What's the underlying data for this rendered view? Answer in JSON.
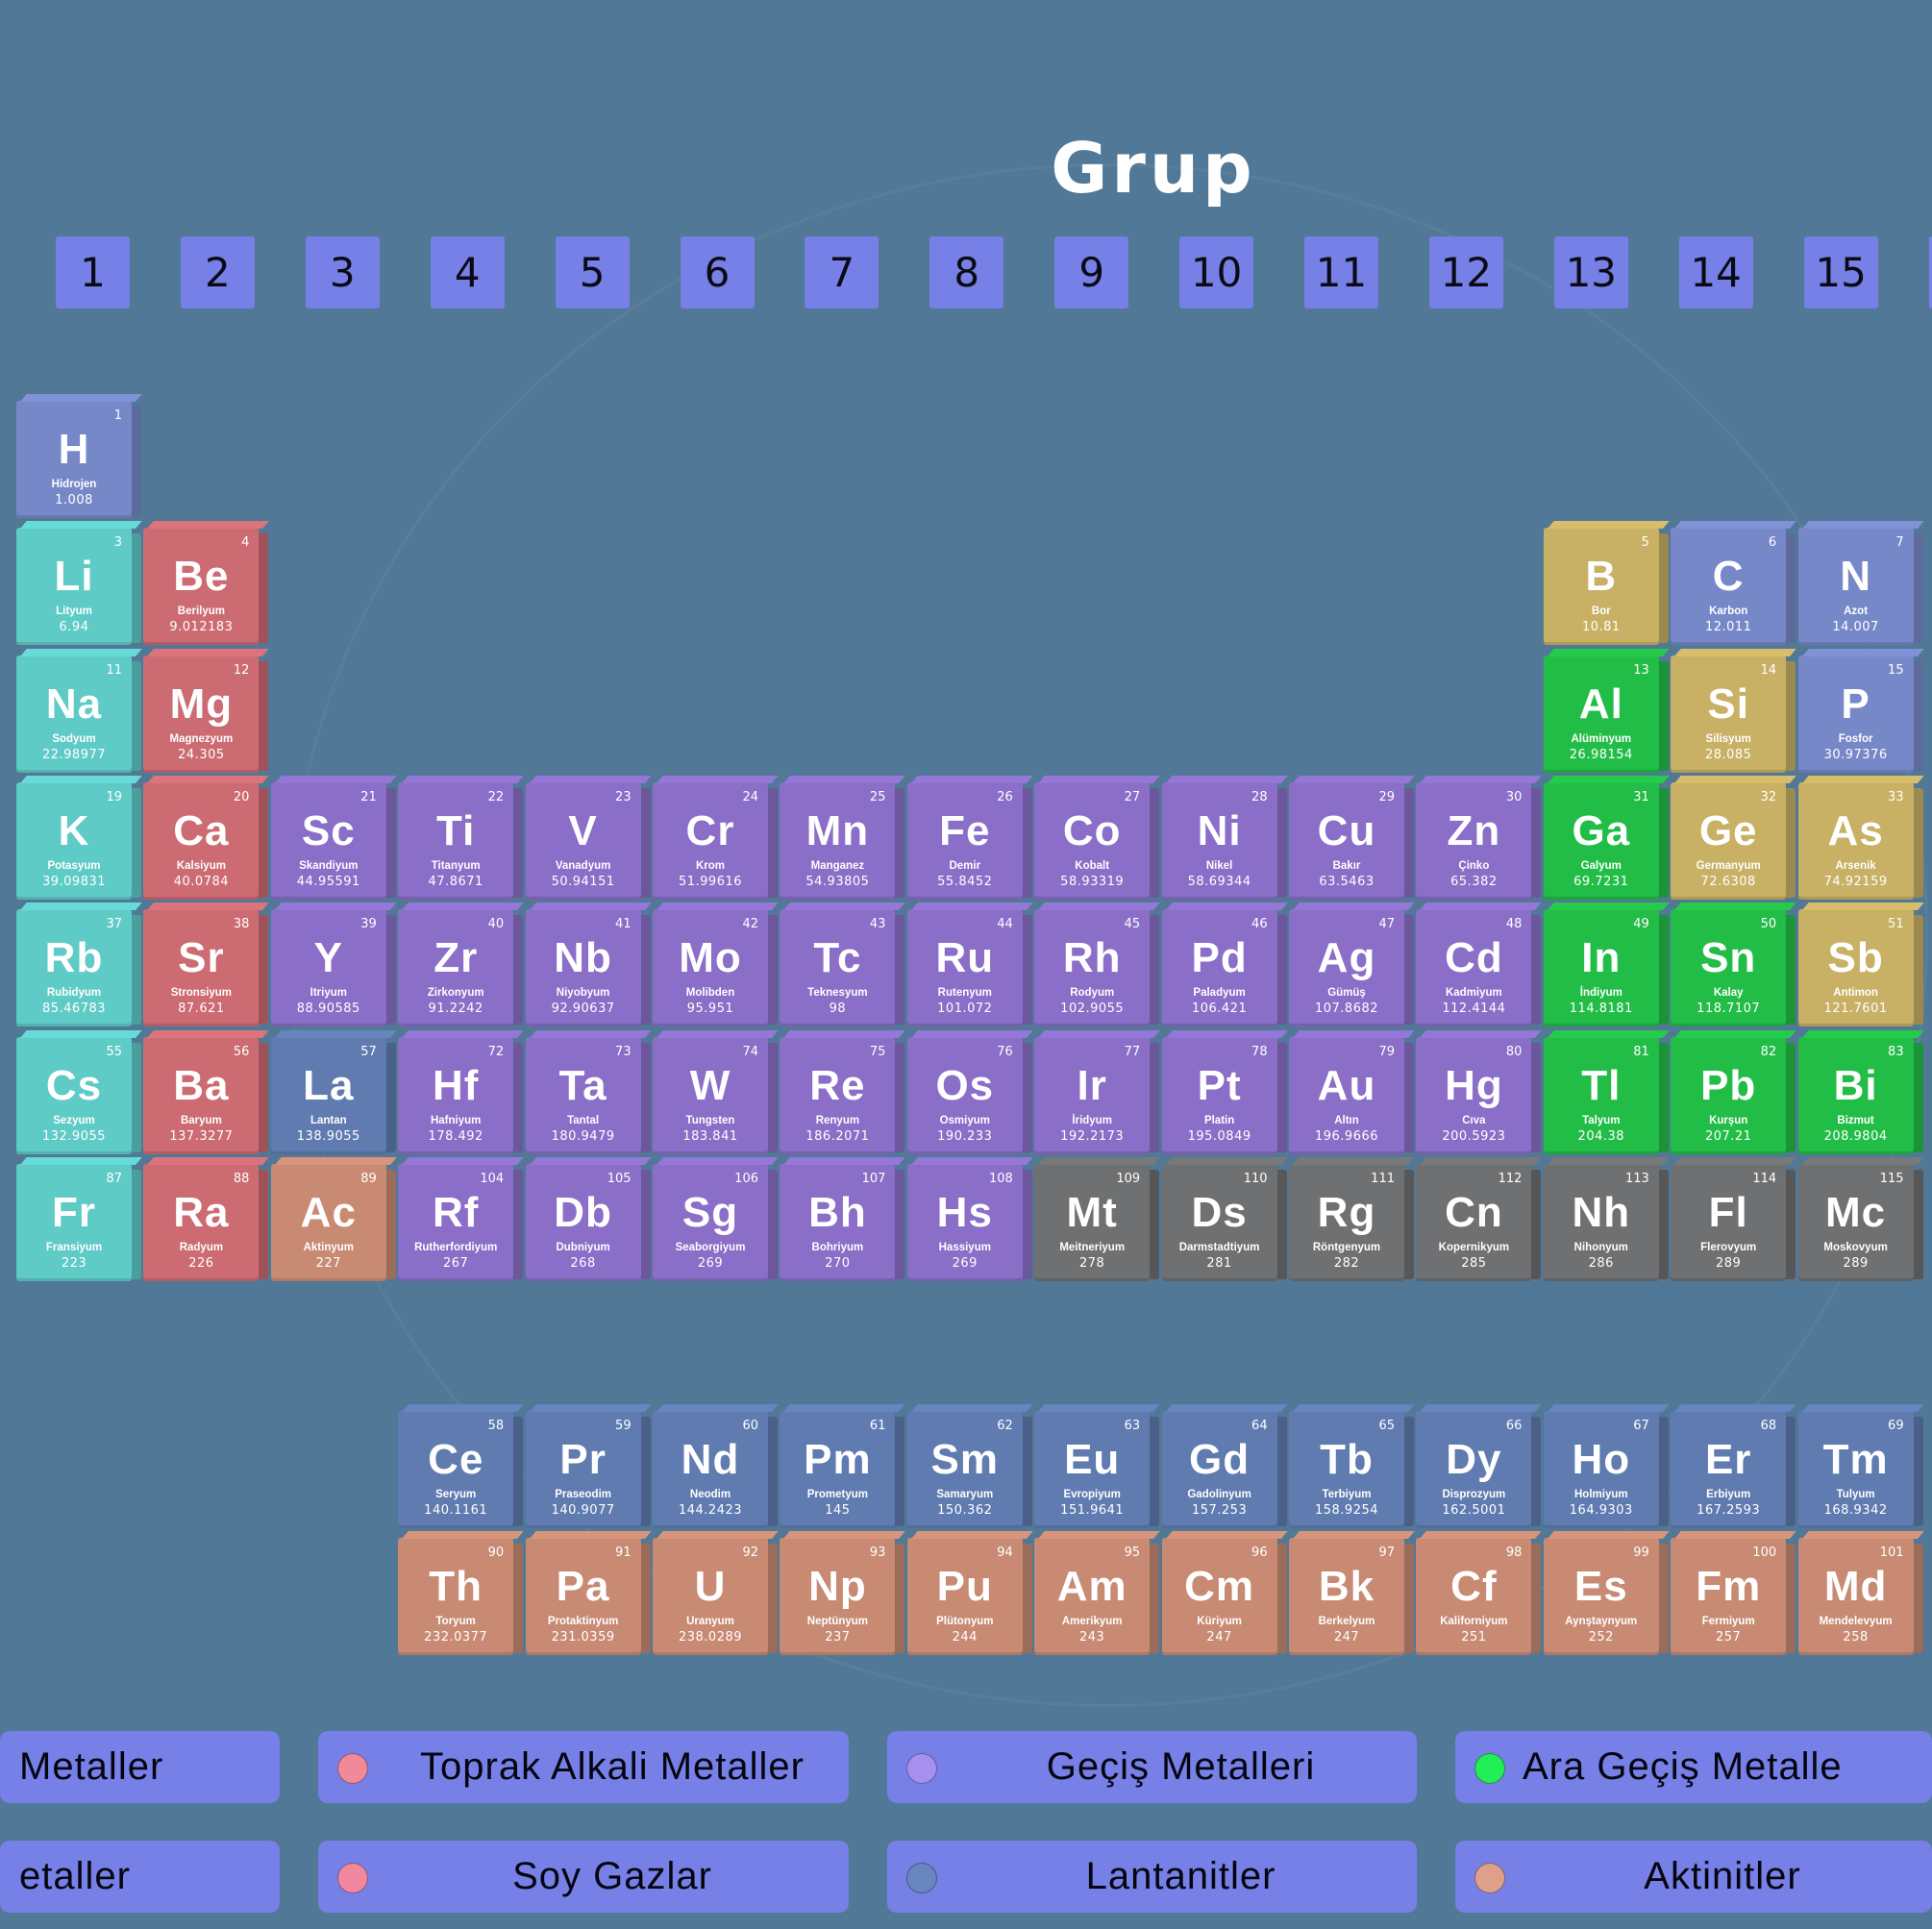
{
  "title": "Grup",
  "groups": [
    "1",
    "2",
    "3",
    "4",
    "5",
    "6",
    "7",
    "8",
    "9",
    "10",
    "11",
    "12",
    "13",
    "14",
    "15",
    ""
  ],
  "categories": {
    "alkali": "#5fcbc7",
    "alkaline": "#cc6b72",
    "transition": "#8a6ec8",
    "nonmetal": "#7788c8",
    "metalloid": "#c8b064",
    "post": "#22bd46",
    "lanthanide": "#5f7bb0",
    "actinide": "#c88a73",
    "unknown": "#6f7071"
  },
  "main_table": [
    [
      {
        "g": 1,
        "s": "H",
        "n": "1",
        "name": "Hidrojen",
        "m": "1.008",
        "c": "nonmetal"
      }
    ],
    [
      {
        "g": 1,
        "s": "Li",
        "n": "3",
        "name": "Lityum",
        "m": "6.94",
        "c": "alkali"
      },
      {
        "g": 2,
        "s": "Be",
        "n": "4",
        "name": "Berilyum",
        "m": "9.012183",
        "c": "alkaline"
      },
      {
        "g": 13,
        "s": "B",
        "n": "5",
        "name": "Bor",
        "m": "10.81",
        "c": "metalloid"
      },
      {
        "g": 14,
        "s": "C",
        "n": "6",
        "name": "Karbon",
        "m": "12.011",
        "c": "nonmetal"
      },
      {
        "g": 15,
        "s": "N",
        "n": "7",
        "name": "Azot",
        "m": "14.007",
        "c": "nonmetal"
      }
    ],
    [
      {
        "g": 1,
        "s": "Na",
        "n": "11",
        "name": "Sodyum",
        "m": "22.98977",
        "c": "alkali"
      },
      {
        "g": 2,
        "s": "Mg",
        "n": "12",
        "name": "Magnezyum",
        "m": "24.305",
        "c": "alkaline"
      },
      {
        "g": 13,
        "s": "Al",
        "n": "13",
        "name": "Alüminyum",
        "m": "26.98154",
        "c": "post"
      },
      {
        "g": 14,
        "s": "Si",
        "n": "14",
        "name": "Silisyum",
        "m": "28.085",
        "c": "metalloid"
      },
      {
        "g": 15,
        "s": "P",
        "n": "15",
        "name": "Fosfor",
        "m": "30.97376",
        "c": "nonmetal"
      }
    ],
    [
      {
        "g": 1,
        "s": "K",
        "n": "19",
        "name": "Potasyum",
        "m": "39.09831",
        "c": "alkali"
      },
      {
        "g": 2,
        "s": "Ca",
        "n": "20",
        "name": "Kalsiyum",
        "m": "40.0784",
        "c": "alkaline"
      },
      {
        "g": 3,
        "s": "Sc",
        "n": "21",
        "name": "Skandiyum",
        "m": "44.95591",
        "c": "transition"
      },
      {
        "g": 4,
        "s": "Ti",
        "n": "22",
        "name": "Titanyum",
        "m": "47.8671",
        "c": "transition"
      },
      {
        "g": 5,
        "s": "V",
        "n": "23",
        "name": "Vanadyum",
        "m": "50.94151",
        "c": "transition"
      },
      {
        "g": 6,
        "s": "Cr",
        "n": "24",
        "name": "Krom",
        "m": "51.99616",
        "c": "transition"
      },
      {
        "g": 7,
        "s": "Mn",
        "n": "25",
        "name": "Manganez",
        "m": "54.93805",
        "c": "transition"
      },
      {
        "g": 8,
        "s": "Fe",
        "n": "26",
        "name": "Demir",
        "m": "55.8452",
        "c": "transition"
      },
      {
        "g": 9,
        "s": "Co",
        "n": "27",
        "name": "Kobalt",
        "m": "58.93319",
        "c": "transition"
      },
      {
        "g": 10,
        "s": "Ni",
        "n": "28",
        "name": "Nikel",
        "m": "58.69344",
        "c": "transition"
      },
      {
        "g": 11,
        "s": "Cu",
        "n": "29",
        "name": "Bakır",
        "m": "63.5463",
        "c": "transition"
      },
      {
        "g": 12,
        "s": "Zn",
        "n": "30",
        "name": "Çinko",
        "m": "65.382",
        "c": "transition"
      },
      {
        "g": 13,
        "s": "Ga",
        "n": "31",
        "name": "Galyum",
        "m": "69.7231",
        "c": "post"
      },
      {
        "g": 14,
        "s": "Ge",
        "n": "32",
        "name": "Germanyum",
        "m": "72.6308",
        "c": "metalloid"
      },
      {
        "g": 15,
        "s": "As",
        "n": "33",
        "name": "Arsenik",
        "m": "74.92159",
        "c": "metalloid"
      }
    ],
    [
      {
        "g": 1,
        "s": "Rb",
        "n": "37",
        "name": "Rubidyum",
        "m": "85.46783",
        "c": "alkali"
      },
      {
        "g": 2,
        "s": "Sr",
        "n": "38",
        "name": "Stronsiyum",
        "m": "87.621",
        "c": "alkaline"
      },
      {
        "g": 3,
        "s": "Y",
        "n": "39",
        "name": "Itriyum",
        "m": "88.90585",
        "c": "transition"
      },
      {
        "g": 4,
        "s": "Zr",
        "n": "40",
        "name": "Zirkonyum",
        "m": "91.2242",
        "c": "transition"
      },
      {
        "g": 5,
        "s": "Nb",
        "n": "41",
        "name": "Niyobyum",
        "m": "92.90637",
        "c": "transition"
      },
      {
        "g": 6,
        "s": "Mo",
        "n": "42",
        "name": "Molibden",
        "m": "95.951",
        "c": "transition"
      },
      {
        "g": 7,
        "s": "Tc",
        "n": "43",
        "name": "Teknesyum",
        "m": "98",
        "c": "transition"
      },
      {
        "g": 8,
        "s": "Ru",
        "n": "44",
        "name": "Rutenyum",
        "m": "101.072",
        "c": "transition"
      },
      {
        "g": 9,
        "s": "Rh",
        "n": "45",
        "name": "Rodyum",
        "m": "102.9055",
        "c": "transition"
      },
      {
        "g": 10,
        "s": "Pd",
        "n": "46",
        "name": "Paladyum",
        "m": "106.421",
        "c": "transition"
      },
      {
        "g": 11,
        "s": "Ag",
        "n": "47",
        "name": "Gümüş",
        "m": "107.8682",
        "c": "transition"
      },
      {
        "g": 12,
        "s": "Cd",
        "n": "48",
        "name": "Kadmiyum",
        "m": "112.4144",
        "c": "transition"
      },
      {
        "g": 13,
        "s": "In",
        "n": "49",
        "name": "İndiyum",
        "m": "114.8181",
        "c": "post"
      },
      {
        "g": 14,
        "s": "Sn",
        "n": "50",
        "name": "Kalay",
        "m": "118.7107",
        "c": "post"
      },
      {
        "g": 15,
        "s": "Sb",
        "n": "51",
        "name": "Antimon",
        "m": "121.7601",
        "c": "metalloid"
      }
    ],
    [
      {
        "g": 1,
        "s": "Cs",
        "n": "55",
        "name": "Sezyum",
        "m": "132.9055",
        "c": "alkali"
      },
      {
        "g": 2,
        "s": "Ba",
        "n": "56",
        "name": "Baryum",
        "m": "137.3277",
        "c": "alkaline"
      },
      {
        "g": 3,
        "s": "La",
        "n": "57",
        "name": "Lantan",
        "m": "138.9055",
        "c": "lanthanide"
      },
      {
        "g": 4,
        "s": "Hf",
        "n": "72",
        "name": "Hafniyum",
        "m": "178.492",
        "c": "transition"
      },
      {
        "g": 5,
        "s": "Ta",
        "n": "73",
        "name": "Tantal",
        "m": "180.9479",
        "c": "transition"
      },
      {
        "g": 6,
        "s": "W",
        "n": "74",
        "name": "Tungsten",
        "m": "183.841",
        "c": "transition"
      },
      {
        "g": 7,
        "s": "Re",
        "n": "75",
        "name": "Renyum",
        "m": "186.2071",
        "c": "transition"
      },
      {
        "g": 8,
        "s": "Os",
        "n": "76",
        "name": "Osmiyum",
        "m": "190.233",
        "c": "transition"
      },
      {
        "g": 9,
        "s": "Ir",
        "n": "77",
        "name": "İridyum",
        "m": "192.2173",
        "c": "transition"
      },
      {
        "g": 10,
        "s": "Pt",
        "n": "78",
        "name": "Platin",
        "m": "195.0849",
        "c": "transition"
      },
      {
        "g": 11,
        "s": "Au",
        "n": "79",
        "name": "Altın",
        "m": "196.9666",
        "c": "transition"
      },
      {
        "g": 12,
        "s": "Hg",
        "n": "80",
        "name": "Cıva",
        "m": "200.5923",
        "c": "transition"
      },
      {
        "g": 13,
        "s": "Tl",
        "n": "81",
        "name": "Talyum",
        "m": "204.38",
        "c": "post"
      },
      {
        "g": 14,
        "s": "Pb",
        "n": "82",
        "name": "Kurşun",
        "m": "207.21",
        "c": "post"
      },
      {
        "g": 15,
        "s": "Bi",
        "n": "83",
        "name": "Bizmut",
        "m": "208.9804",
        "c": "post"
      }
    ],
    [
      {
        "g": 1,
        "s": "Fr",
        "n": "87",
        "name": "Fransiyum",
        "m": "223",
        "c": "alkali"
      },
      {
        "g": 2,
        "s": "Ra",
        "n": "88",
        "name": "Radyum",
        "m": "226",
        "c": "alkaline"
      },
      {
        "g": 3,
        "s": "Ac",
        "n": "89",
        "name": "Aktinyum",
        "m": "227",
        "c": "actinide"
      },
      {
        "g": 4,
        "s": "Rf",
        "n": "104",
        "name": "Rutherfordiyum",
        "m": "267",
        "c": "transition"
      },
      {
        "g": 5,
        "s": "Db",
        "n": "105",
        "name": "Dubniyum",
        "m": "268",
        "c": "transition"
      },
      {
        "g": 6,
        "s": "Sg",
        "n": "106",
        "name": "Seaborgiyum",
        "m": "269",
        "c": "transition"
      },
      {
        "g": 7,
        "s": "Bh",
        "n": "107",
        "name": "Bohriyum",
        "m": "270",
        "c": "transition"
      },
      {
        "g": 8,
        "s": "Hs",
        "n": "108",
        "name": "Hassiyum",
        "m": "269",
        "c": "transition"
      },
      {
        "g": 9,
        "s": "Mt",
        "n": "109",
        "name": "Meitneriyum",
        "m": "278",
        "c": "unknown"
      },
      {
        "g": 10,
        "s": "Ds",
        "n": "110",
        "name": "Darmstadtiyum",
        "m": "281",
        "c": "unknown"
      },
      {
        "g": 11,
        "s": "Rg",
        "n": "111",
        "name": "Röntgenyum",
        "m": "282",
        "c": "unknown"
      },
      {
        "g": 12,
        "s": "Cn",
        "n": "112",
        "name": "Kopernikyum",
        "m": "285",
        "c": "unknown"
      },
      {
        "g": 13,
        "s": "Nh",
        "n": "113",
        "name": "Nihonyum",
        "m": "286",
        "c": "unknown"
      },
      {
        "g": 14,
        "s": "Fl",
        "n": "114",
        "name": "Flerovyum",
        "m": "289",
        "c": "unknown"
      },
      {
        "g": 15,
        "s": "Mc",
        "n": "115",
        "name": "Moskovyum",
        "m": "289",
        "c": "unknown"
      }
    ]
  ],
  "f_block": [
    [
      {
        "s": "Ce",
        "n": "58",
        "name": "Seryum",
        "m": "140.1161",
        "c": "lanthanide"
      },
      {
        "s": "Pr",
        "n": "59",
        "name": "Praseodim",
        "m": "140.9077",
        "c": "lanthanide"
      },
      {
        "s": "Nd",
        "n": "60",
        "name": "Neodim",
        "m": "144.2423",
        "c": "lanthanide"
      },
      {
        "s": "Pm",
        "n": "61",
        "name": "Prometyum",
        "m": "145",
        "c": "lanthanide"
      },
      {
        "s": "Sm",
        "n": "62",
        "name": "Samaryum",
        "m": "150.362",
        "c": "lanthanide"
      },
      {
        "s": "Eu",
        "n": "63",
        "name": "Evropiyum",
        "m": "151.9641",
        "c": "lanthanide"
      },
      {
        "s": "Gd",
        "n": "64",
        "name": "Gadolinyum",
        "m": "157.253",
        "c": "lanthanide"
      },
      {
        "s": "Tb",
        "n": "65",
        "name": "Terbiyum",
        "m": "158.9254",
        "c": "lanthanide"
      },
      {
        "s": "Dy",
        "n": "66",
        "name": "Disprozyum",
        "m": "162.5001",
        "c": "lanthanide"
      },
      {
        "s": "Ho",
        "n": "67",
        "name": "Holmiyum",
        "m": "164.9303",
        "c": "lanthanide"
      },
      {
        "s": "Er",
        "n": "68",
        "name": "Erbiyum",
        "m": "167.2593",
        "c": "lanthanide"
      },
      {
        "s": "Tm",
        "n": "69",
        "name": "Tulyum",
        "m": "168.9342",
        "c": "lanthanide"
      }
    ],
    [
      {
        "s": "Th",
        "n": "90",
        "name": "Toryum",
        "m": "232.0377",
        "c": "actinide"
      },
      {
        "s": "Pa",
        "n": "91",
        "name": "Protaktinyum",
        "m": "231.0359",
        "c": "actinide"
      },
      {
        "s": "U",
        "n": "92",
        "name": "Uranyum",
        "m": "238.0289",
        "c": "actinide"
      },
      {
        "s": "Np",
        "n": "93",
        "name": "Neptünyum",
        "m": "237",
        "c": "actinide"
      },
      {
        "s": "Pu",
        "n": "94",
        "name": "Plütonyum",
        "m": "244",
        "c": "actinide"
      },
      {
        "s": "Am",
        "n": "95",
        "name": "Amerikyum",
        "m": "243",
        "c": "actinide"
      },
      {
        "s": "Cm",
        "n": "96",
        "name": "Küriyum",
        "m": "247",
        "c": "actinide"
      },
      {
        "s": "Bk",
        "n": "97",
        "name": "Berkelyum",
        "m": "247",
        "c": "actinide"
      },
      {
        "s": "Cf",
        "n": "98",
        "name": "Kaliforniyum",
        "m": "251",
        "c": "actinide"
      },
      {
        "s": "Es",
        "n": "99",
        "name": "Aynştaynyum",
        "m": "252",
        "c": "actinide"
      },
      {
        "s": "Fm",
        "n": "100",
        "name": "Fermiyum",
        "m": "257",
        "c": "actinide"
      },
      {
        "s": "Md",
        "n": "101",
        "name": "Mendelevyum",
        "m": "258",
        "c": "actinide"
      }
    ]
  ],
  "legend": [
    [
      {
        "label": "Metaller",
        "dot": null
      },
      {
        "label": "Toprak Alkali Metaller",
        "dot": "#f08a98"
      },
      {
        "label": "Geçiş Metalleri",
        "dot": "#a690ee"
      },
      {
        "label": "Ara Geçiş Metalle",
        "dot": "#22ee55"
      }
    ],
    [
      {
        "label": "etaller",
        "dot": null
      },
      {
        "label": "Soy Gazlar",
        "dot": "#f088a0"
      },
      {
        "label": "Lantanitler",
        "dot": "#6a86be"
      },
      {
        "label": "Aktinitler",
        "dot": "#dea088"
      }
    ]
  ]
}
